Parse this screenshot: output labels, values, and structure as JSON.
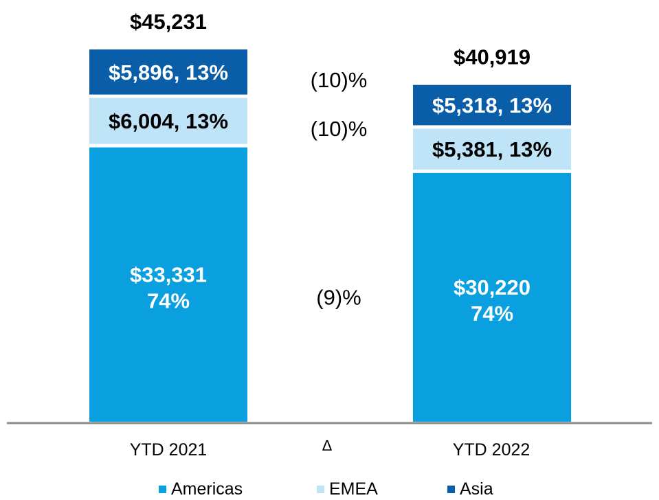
{
  "chart_data": {
    "type": "bar",
    "stacked": true,
    "categories": [
      "YTD 2021",
      "YTD 2022"
    ],
    "delta_header": "∆",
    "series": [
      {
        "name": "Americas",
        "values": [
          33331,
          30220
        ],
        "labels": [
          "$33,331",
          "$30,220"
        ],
        "shares": [
          "74%",
          "74%"
        ],
        "delta": "(9)%",
        "color": "#0A9FDF",
        "text_color": "#ffffff"
      },
      {
        "name": "EMEA",
        "values": [
          6004,
          5381
        ],
        "labels": [
          "$6,004, 13%",
          "$5,381, 13%"
        ],
        "delta": "(10)%",
        "color": "#BFE3F7",
        "text_color": "#000000"
      },
      {
        "name": "Asia",
        "values": [
          5896,
          5318
        ],
        "labels": [
          "$5,896, 13%",
          "$5,318, 13%"
        ],
        "delta": "(10)%",
        "color": "#0A5EA8",
        "text_color": "#ffffff"
      }
    ],
    "totals": [
      "$45,231",
      "$40,919"
    ],
    "legend_position": "bottom",
    "axis_color": "#8C8C8C",
    "ylim": [
      0,
      45231
    ]
  }
}
